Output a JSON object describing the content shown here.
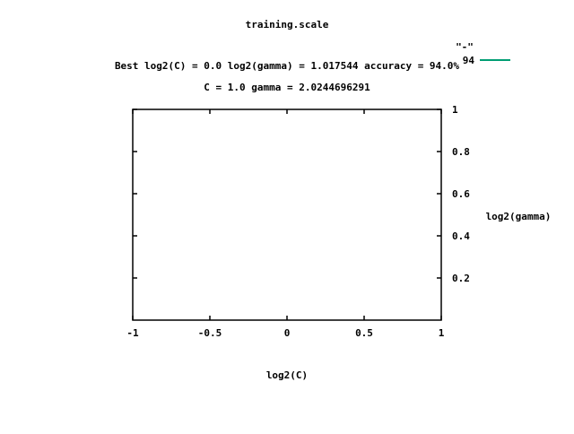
{
  "chart_data": {
    "type": "line",
    "title": "training.scale",
    "subtitle_lines": [
      "Best log2(C) = 0.0  log2(gamma) = 1.017544  accuracy = 94.0%",
      "C = 1.0  gamma = 2.0244696291"
    ],
    "xlabel": "log2(C)",
    "ylabel": "log2(gamma)",
    "xlim": [
      -1,
      1
    ],
    "ylim": [
      0,
      1
    ],
    "x_ticks": [
      -1,
      -0.5,
      0,
      0.5,
      1
    ],
    "x_tick_labels": [
      "-1",
      "-0.5",
      "0",
      "0.5",
      "1"
    ],
    "y_ticks": [
      0.2,
      0.4,
      0.6,
      0.8,
      1
    ],
    "y_tick_labels": [
      "0.2",
      "0.4",
      "0.6",
      "0.8",
      "1"
    ],
    "y_axis_side": "right",
    "grid": false,
    "legend_position": "top-right",
    "series": [
      {
        "name": "\"-\"",
        "label": "94",
        "color": "#009e73",
        "points": []
      }
    ]
  }
}
